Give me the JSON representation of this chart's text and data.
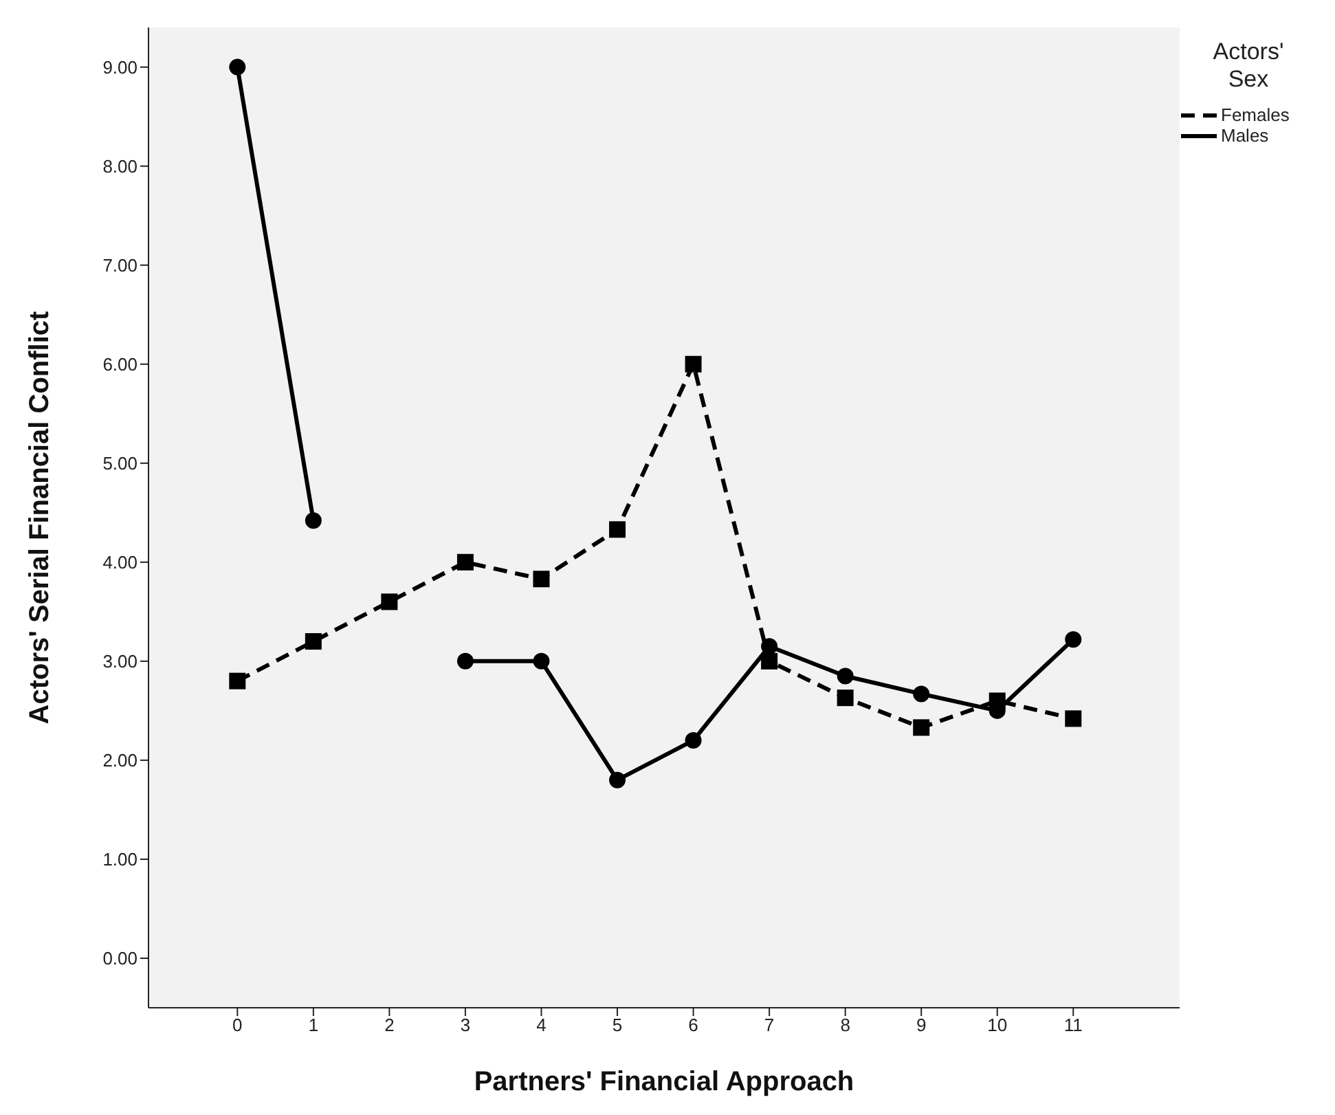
{
  "chart_data": {
    "type": "line",
    "xlabel": "Partners' Financial Approach",
    "ylabel": "Actors' Serial Financial Conflict",
    "legend_title": "Actors' Sex",
    "x": [
      0,
      1,
      2,
      3,
      4,
      5,
      6,
      7,
      8,
      9,
      10,
      11
    ],
    "series": [
      {
        "name": "Females",
        "color": "#000000",
        "line_style": "dashed",
        "marker": "square",
        "values": [
          2.8,
          3.2,
          3.6,
          4.0,
          3.83,
          4.33,
          6.0,
          3.0,
          2.63,
          2.33,
          2.6,
          2.42
        ]
      },
      {
        "name": "Males",
        "color": "#000000",
        "line_style": "solid",
        "marker": "circle",
        "values": [
          9.0,
          4.42,
          null,
          3.0,
          3.0,
          1.8,
          2.2,
          3.15,
          2.85,
          2.67,
          2.5,
          3.22
        ]
      }
    ],
    "xlim": [
      -1.17,
      12.4
    ],
    "xticks": [
      0,
      1,
      2,
      3,
      4,
      5,
      6,
      7,
      8,
      9,
      10,
      11
    ],
    "ylim": [
      -0.5,
      9.4
    ],
    "yticks": [
      {
        "value": 0,
        "label": "0.00"
      },
      {
        "value": 1,
        "label": "1.00"
      },
      {
        "value": 2,
        "label": "2.00"
      },
      {
        "value": 3,
        "label": "3.00"
      },
      {
        "value": 4,
        "label": "4.00"
      },
      {
        "value": 5,
        "label": "5.00"
      },
      {
        "value": 6,
        "label": "6.00"
      },
      {
        "value": 7,
        "label": "7.00"
      },
      {
        "value": 8,
        "label": "8.00"
      },
      {
        "value": 9,
        "label": "9.00"
      }
    ],
    "grid": false,
    "legend": "right"
  }
}
